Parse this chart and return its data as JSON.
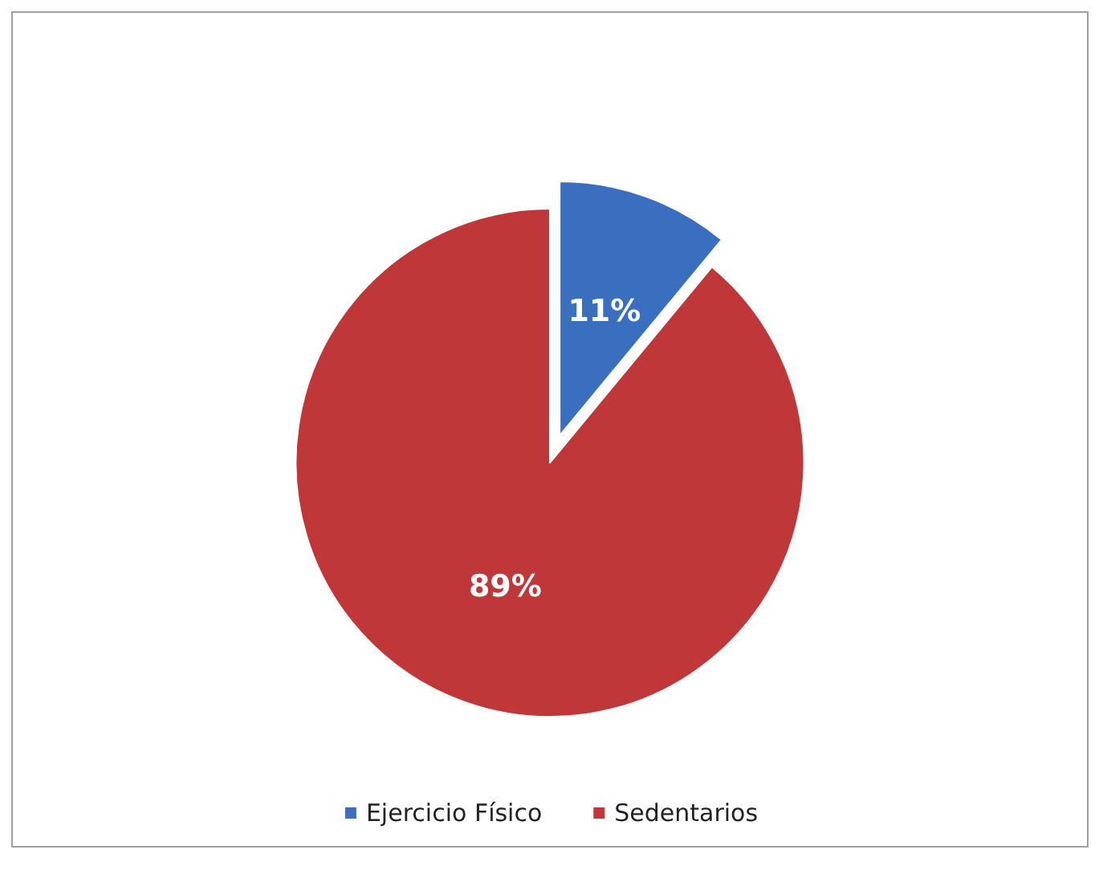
{
  "chart_data": {
    "type": "pie",
    "categories": [
      "Ejercicio Físico",
      "Sedentarios"
    ],
    "values": [
      11,
      89
    ],
    "colors": [
      "#3a6fc0",
      "#c0373a"
    ],
    "value_labels": [
      "11%",
      "89%"
    ],
    "legend": "bottom"
  }
}
